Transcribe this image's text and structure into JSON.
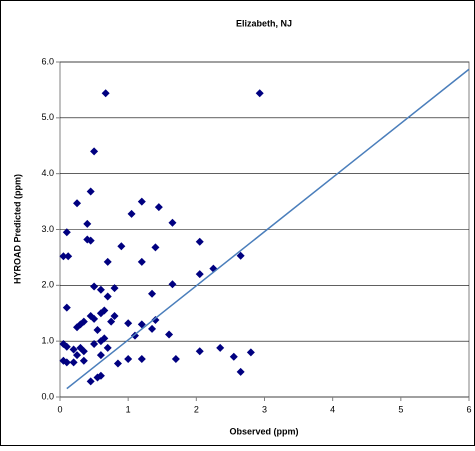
{
  "chart_data": {
    "type": "scatter",
    "title": "Elizabeth, NJ",
    "xlabel": "Observed (ppm)",
    "ylabel": "HYROAD Predicted (ppm)",
    "xlim": [
      0,
      6
    ],
    "ylim": [
      0,
      6
    ],
    "xticks": [
      0,
      1,
      2,
      3,
      4,
      5,
      6
    ],
    "yticks": [
      {
        "value": 0,
        "label": "0.0"
      },
      {
        "value": 1,
        "label": "1.0"
      },
      {
        "value": 2,
        "label": "2.0"
      },
      {
        "value": 3,
        "label": "3.0"
      },
      {
        "value": 4,
        "label": "4.0"
      },
      {
        "value": 5,
        "label": "5.0"
      },
      {
        "value": 6,
        "label": "6.0"
      }
    ],
    "grid": true,
    "series": [
      {
        "color": "#000080",
        "marker": "diamond",
        "x": [
          0.67,
          2.93,
          0.5,
          0.45,
          0.25,
          0.4,
          1.2,
          1.05,
          1.45,
          1.65,
          0.1,
          0.4,
          0.45,
          0.9,
          1.4,
          2.05,
          2.65,
          0.05,
          0.12,
          0.7,
          1.2,
          2.25,
          2.05,
          1.65,
          0.5,
          0.6,
          0.8,
          0.7,
          1.35,
          0.1,
          0.35,
          0.45,
          0.5,
          0.6,
          0.65,
          0.8,
          0.75,
          0.3,
          0.25,
          1.0,
          1.4,
          1.35,
          1.2,
          0.55,
          0.6,
          0.5,
          0.65,
          0.7,
          0.05,
          0.1,
          0.2,
          0.3,
          0.35,
          0.25,
          1.1,
          1.6,
          0.1,
          0.05,
          0.2,
          0.35,
          0.6,
          0.85,
          1.0,
          1.2,
          1.7,
          2.05,
          2.35,
          2.55,
          2.8,
          2.65,
          0.45,
          0.55,
          0.6
        ],
        "values": [
          5.44,
          5.44,
          4.4,
          3.68,
          3.47,
          3.1,
          3.5,
          3.28,
          3.4,
          3.12,
          2.95,
          2.82,
          2.8,
          2.7,
          2.68,
          2.78,
          2.53,
          2.52,
          2.52,
          2.42,
          2.42,
          2.3,
          2.2,
          2.02,
          1.98,
          1.92,
          1.95,
          1.8,
          1.85,
          1.6,
          1.35,
          1.45,
          1.4,
          1.5,
          1.55,
          1.45,
          1.35,
          1.3,
          1.25,
          1.32,
          1.38,
          1.22,
          1.3,
          1.2,
          1.0,
          0.95,
          1.05,
          0.88,
          0.95,
          0.9,
          0.85,
          0.88,
          0.82,
          0.75,
          1.1,
          1.12,
          0.62,
          0.65,
          0.62,
          0.65,
          0.75,
          0.6,
          0.68,
          0.68,
          0.68,
          0.82,
          0.88,
          0.72,
          0.8,
          0.45,
          0.28,
          0.35,
          0.38
        ]
      },
      {
        "color": "#4a7ebb",
        "marker": "none",
        "line": true,
        "x": [
          0.1,
          6
        ],
        "values": [
          0.15,
          5.87
        ]
      }
    ]
  }
}
